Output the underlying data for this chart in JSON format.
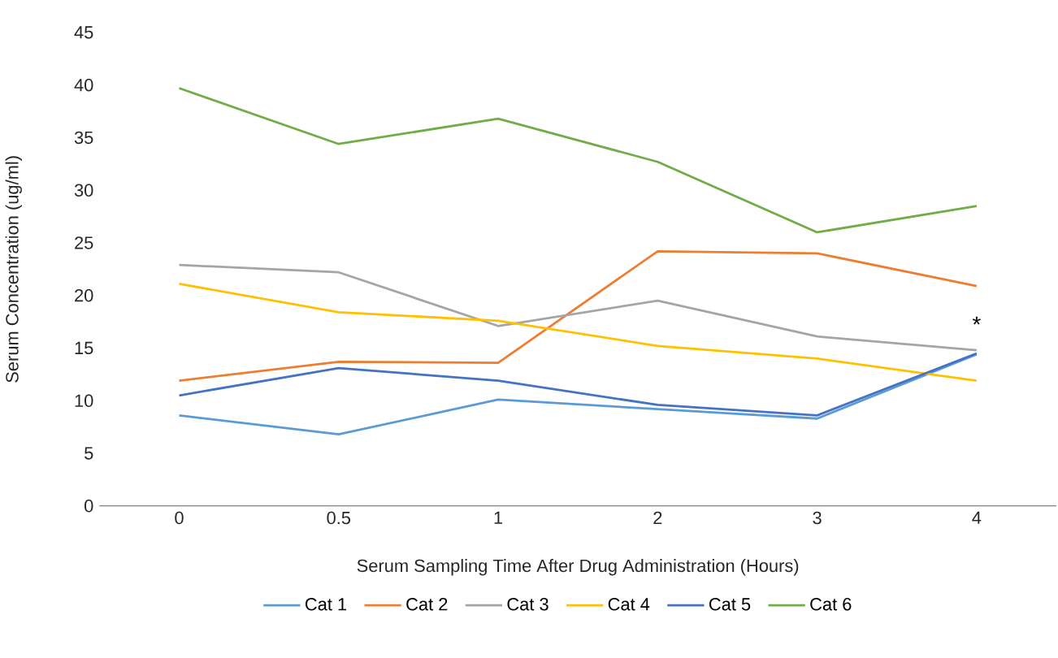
{
  "chart_data": {
    "type": "line",
    "xlabel": "Serum Sampling Time After Drug Administration (Hours)",
    "ylabel": "Serum Concentration (ug/ml)",
    "categories": [
      "0",
      "0.5",
      "1",
      "2",
      "3",
      "4"
    ],
    "ylim": [
      0,
      45
    ],
    "yticks": [
      0,
      5,
      10,
      15,
      20,
      25,
      30,
      35,
      40,
      45
    ],
    "legend": "bottom",
    "marker": "none",
    "line_style": "solid",
    "series": [
      {
        "name": "Cat 1",
        "color": "#5b9bd5",
        "values": [
          8.6,
          6.8,
          10.1,
          9.2,
          8.3,
          14.4
        ]
      },
      {
        "name": "Cat 2",
        "color": "#ed7d31",
        "values": [
          11.9,
          13.7,
          13.6,
          24.2,
          24.0,
          20.9
        ]
      },
      {
        "name": "Cat 3",
        "color": "#a5a5a5",
        "values": [
          22.9,
          22.2,
          17.1,
          19.5,
          16.1,
          14.8
        ]
      },
      {
        "name": "Cat 4",
        "color": "#ffc000",
        "values": [
          21.1,
          18.4,
          17.6,
          15.2,
          14.0,
          11.9
        ]
      },
      {
        "name": "Cat 5",
        "color": "#4472c4",
        "values": [
          10.5,
          13.1,
          11.9,
          9.6,
          8.6,
          14.5
        ]
      },
      {
        "name": "Cat 6",
        "color": "#70ad47",
        "values": [
          39.7,
          34.4,
          36.8,
          32.7,
          26.0,
          28.5
        ]
      }
    ],
    "annotations": [
      "*"
    ]
  }
}
